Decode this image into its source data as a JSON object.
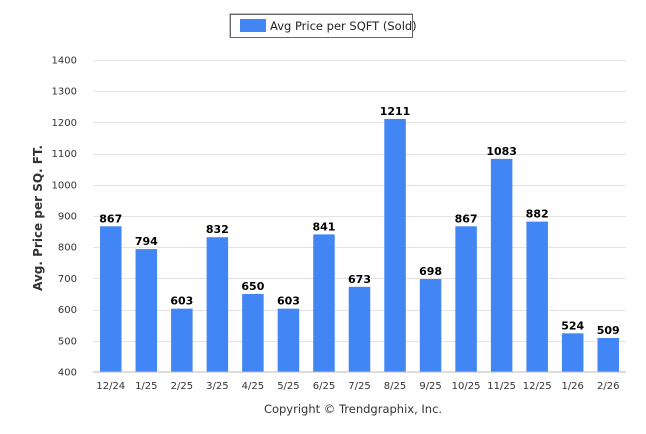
{
  "chart_data": {
    "type": "bar",
    "title": "",
    "xlabel": "",
    "ylabel": "Avg. Price per SQ. FT.",
    "ylim": [
      400,
      1400
    ],
    "yticks": [
      400,
      500,
      600,
      700,
      800,
      900,
      1000,
      1100,
      1200,
      1300,
      1400
    ],
    "grid": true,
    "legend_position": "top-center",
    "categories": [
      "12/24",
      "1/25",
      "2/25",
      "3/25",
      "4/25",
      "5/25",
      "6/25",
      "7/25",
      "8/25",
      "9/25",
      "10/25",
      "11/25",
      "12/25",
      "1/26",
      "2/26"
    ],
    "series": [
      {
        "name": "Avg Price per SQFT (Sold)",
        "color": "#4285f4",
        "values": [
          867,
          794,
          603,
          832,
          650,
          603,
          841,
          673,
          1211,
          698,
          867,
          1083,
          882,
          524,
          509
        ]
      }
    ]
  },
  "credit": "Copyright © Trendgraphix, Inc."
}
